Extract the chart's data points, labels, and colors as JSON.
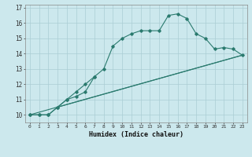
{
  "title": "",
  "xlabel": "Humidex (Indice chaleur)",
  "background_color": "#cce8ed",
  "grid_color": "#aacdd4",
  "line_color": "#2a7a6e",
  "x_values": [
    0,
    1,
    2,
    3,
    4,
    5,
    6,
    7,
    8,
    9,
    10,
    11,
    12,
    13,
    14,
    15,
    16,
    17,
    18,
    19,
    20,
    21,
    22,
    23
  ],
  "line1": [
    10,
    10,
    10,
    10.5,
    11,
    11.5,
    12,
    12.5,
    13,
    14.5,
    15,
    15.3,
    15.5,
    15.5,
    15.5,
    16.5,
    16.6,
    16.3,
    15.3,
    15.0,
    14.3,
    14.4,
    14.3,
    13.9
  ],
  "line2_x": [
    0,
    1,
    2,
    3,
    4,
    5,
    6,
    7
  ],
  "line2_y": [
    10,
    10,
    10,
    10.5,
    11,
    11.2,
    11.5,
    12.5
  ],
  "line3_x": [
    0,
    23
  ],
  "line3_y": [
    10,
    13.9
  ],
  "line4_x": [
    3,
    23
  ],
  "line4_y": [
    10.5,
    13.9
  ],
  "ylim": [
    9.5,
    17.2
  ],
  "xlim": [
    -0.5,
    23.5
  ],
  "yticks": [
    10,
    11,
    12,
    13,
    14,
    15,
    16,
    17
  ],
  "xticks": [
    0,
    1,
    2,
    3,
    4,
    5,
    6,
    7,
    8,
    9,
    10,
    11,
    12,
    13,
    14,
    15,
    16,
    17,
    18,
    19,
    20,
    21,
    22,
    23
  ],
  "xtick_labels": [
    "0",
    "1",
    "2",
    "3",
    "4",
    "5",
    "6",
    "7",
    "8",
    "9",
    "10",
    "11",
    "12",
    "13",
    "14",
    "15",
    "16",
    "17",
    "18",
    "19",
    "20",
    "21",
    "22",
    "23"
  ]
}
